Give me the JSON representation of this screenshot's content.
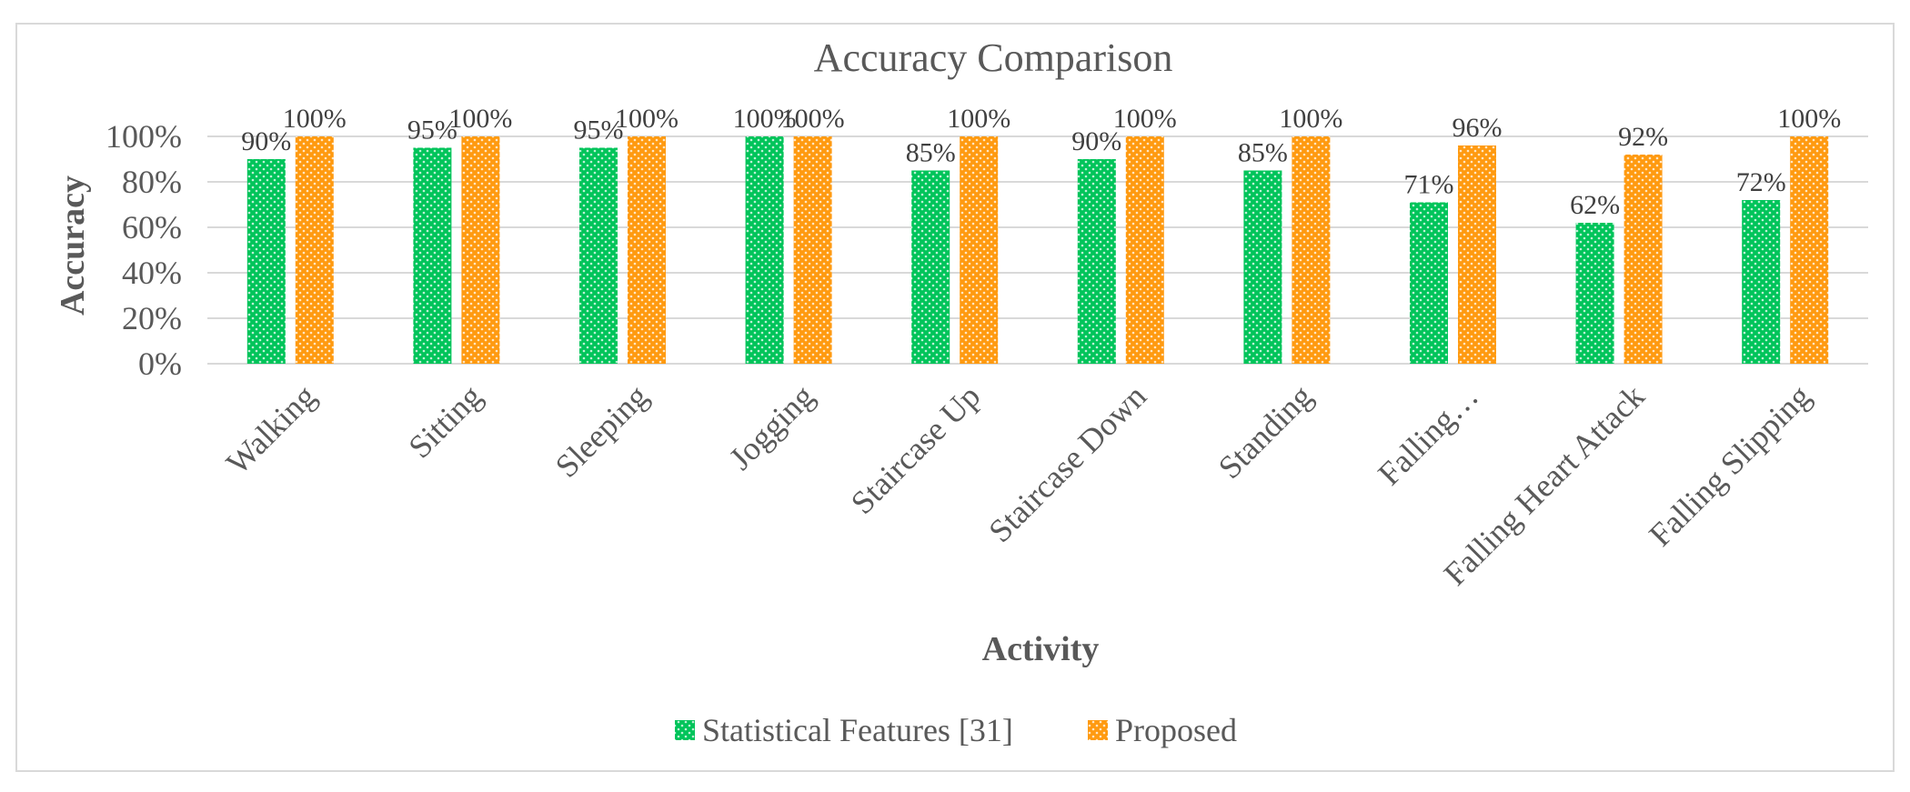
{
  "chart_data": {
    "type": "bar",
    "title": "Accuracy Comparison",
    "xlabel": "Activity",
    "ylabel": "Accuracy",
    "ylim": [
      0,
      100
    ],
    "yticks": [
      "0%",
      "20%",
      "40%",
      "60%",
      "80%",
      "100%"
    ],
    "ytick_values": [
      0,
      20,
      40,
      60,
      80,
      100
    ],
    "grid": true,
    "legend": "bottom",
    "categories": [
      "Walking",
      "Sitting",
      "Sleeping",
      "Jogging",
      "Staircase Up",
      "Staircase Down",
      "Standing",
      "Falling…",
      "Falling Heart Attack",
      "Falling Slipping"
    ],
    "series": [
      {
        "name": "Statistical Features [31]",
        "color": "#00c45a",
        "values": [
          90,
          95,
          95,
          100,
          85,
          90,
          85,
          71,
          62,
          72
        ],
        "labels": [
          "90%",
          "95%",
          "95%",
          "100%",
          "85%",
          "90%",
          "85%",
          "71%",
          "62%",
          "72%"
        ]
      },
      {
        "name": "Proposed",
        "color": "#ff9a10",
        "values": [
          100,
          100,
          100,
          100,
          100,
          100,
          100,
          96,
          92,
          100
        ],
        "labels": [
          "100%",
          "100%",
          "100%",
          "100%",
          "100%",
          "100%",
          "100%",
          "96%",
          "92%",
          "100%"
        ]
      }
    ]
  }
}
